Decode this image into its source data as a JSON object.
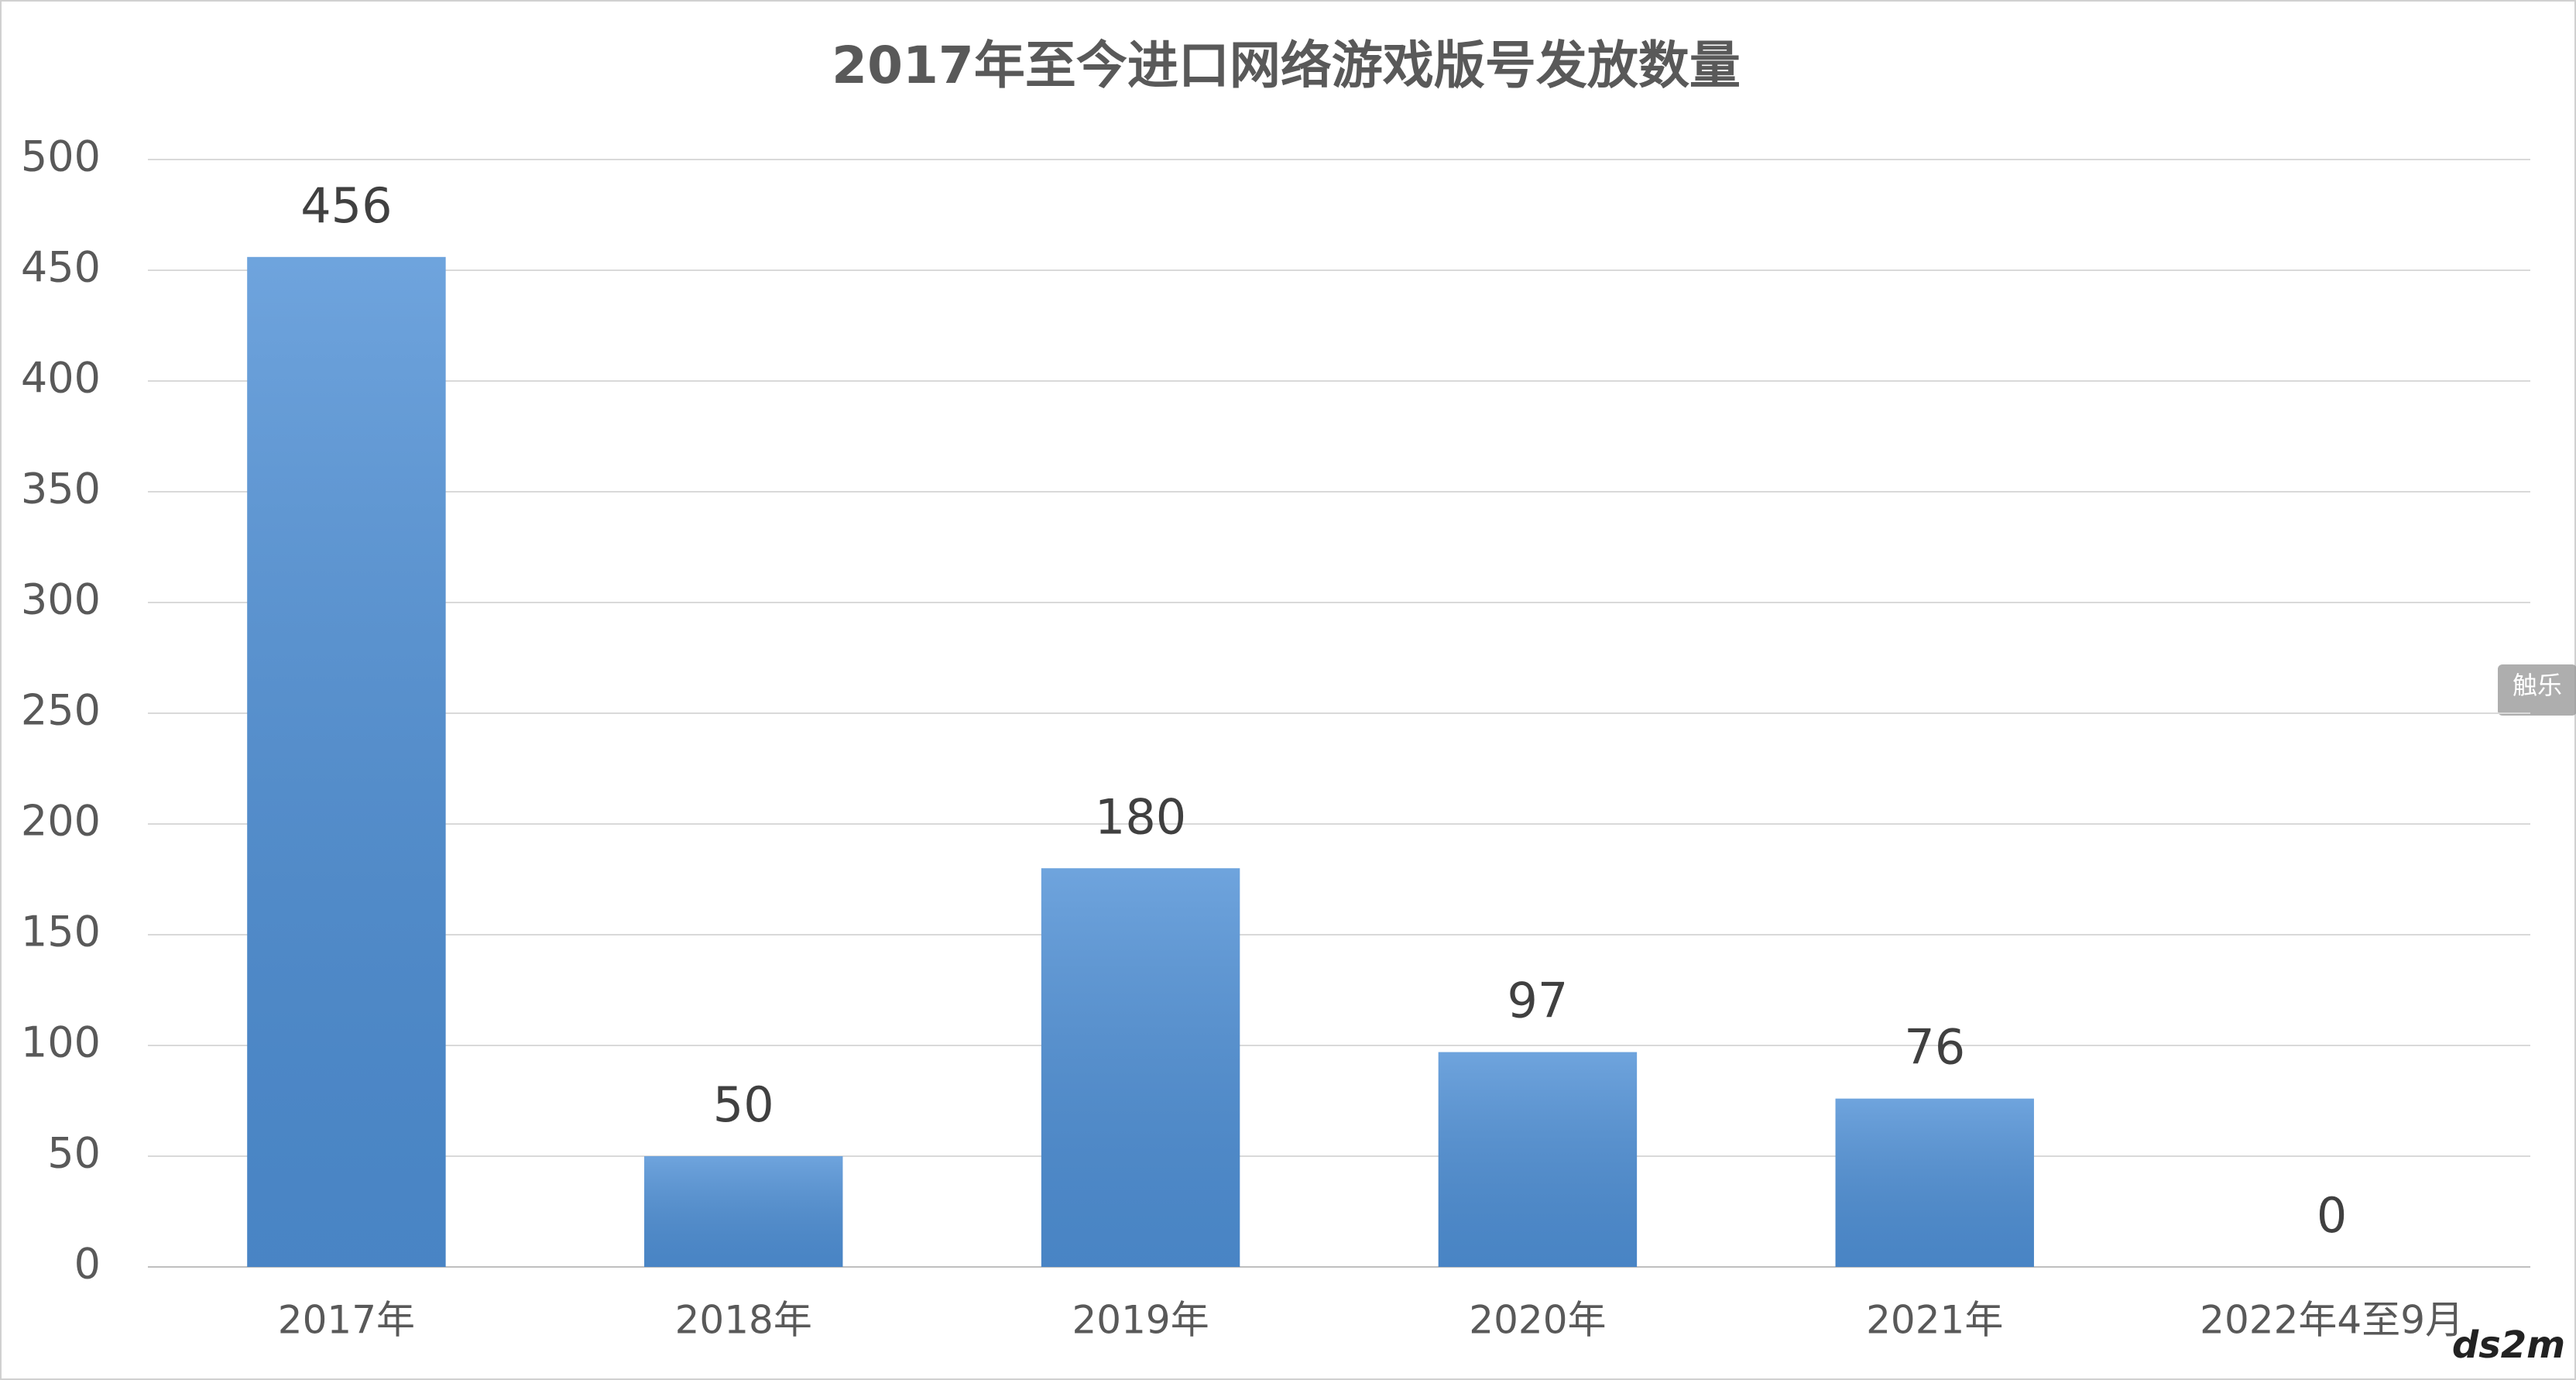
{
  "chart_data": {
    "type": "bar",
    "title": "2017年至今进口网络游戏版号发放数量",
    "categories": [
      "2017年",
      "2018年",
      "2019年",
      "2020年",
      "2021年",
      "2022年4至9月"
    ],
    "values": [
      456,
      50,
      180,
      97,
      76,
      0
    ],
    "color": "#4f90d6",
    "ylim": [
      0,
      500
    ],
    "yticks": [
      0,
      50,
      100,
      150,
      200,
      250,
      300,
      350,
      400,
      450,
      500
    ],
    "grid": true,
    "watermarks": [
      "触乐",
      "ds2m"
    ]
  }
}
